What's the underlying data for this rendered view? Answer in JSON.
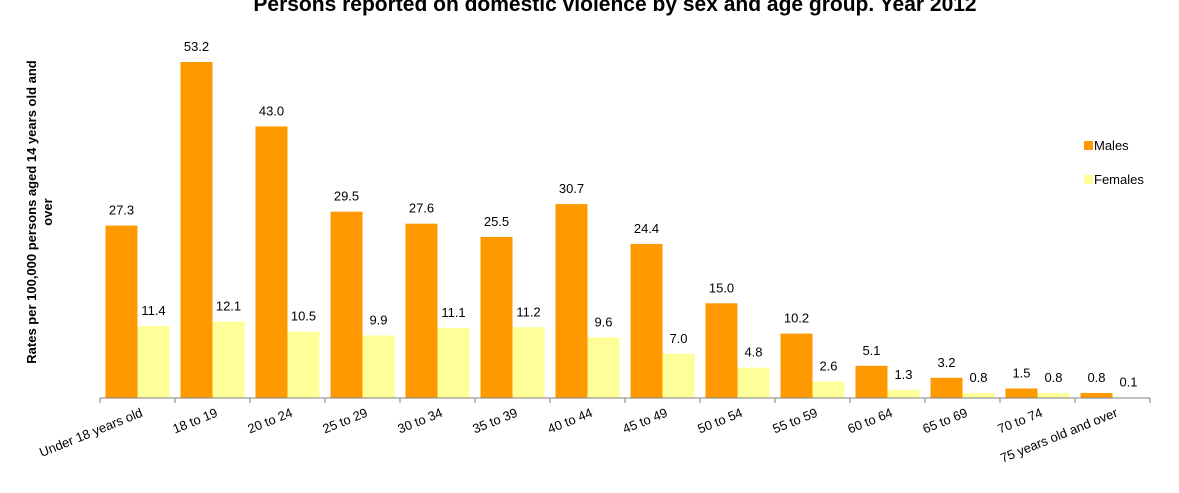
{
  "chart_data": {
    "type": "bar",
    "title": "Persons reported on domestic violence by sex and age group. Year 2012",
    "ylabel_lines": [
      "Rates per 100,000 persons aged 14 years old and",
      "over"
    ],
    "xlabel": "",
    "categories": [
      "Under 18 years old",
      "18 to 19",
      "20 to 24",
      "25 to 29",
      "30 to 34",
      "35 to 39",
      "40 to 44",
      "45 to 49",
      "50 to 54",
      "55 to 59",
      "60 to 64",
      "65 to 69",
      "70 to 74",
      "75 years old and over"
    ],
    "series": [
      {
        "name": "Males",
        "color": "#FF9900",
        "values": [
          27.3,
          53.2,
          43.0,
          29.5,
          27.6,
          25.5,
          30.7,
          24.4,
          15.0,
          10.2,
          5.1,
          3.2,
          1.5,
          0.8
        ],
        "labels": [
          "27.3",
          "53.2",
          "43.0",
          "29.5",
          "27.6",
          "25.5",
          "30.7",
          "24.4",
          "15.0",
          "10.2",
          "5.1",
          "3.2",
          "1.5",
          "0.8"
        ]
      },
      {
        "name": "Females",
        "color": "#FFFF99",
        "values": [
          11.4,
          12.1,
          10.5,
          9.9,
          11.1,
          11.2,
          9.6,
          7.0,
          4.8,
          2.6,
          1.3,
          0.8,
          0.8,
          0.1
        ],
        "labels": [
          "11.4",
          "12.1",
          "10.5",
          "9.9",
          "11.1",
          "11.2",
          "9.6",
          "7.0",
          "4.8",
          "2.6",
          "1.3",
          "0.8",
          "0.8",
          "0.1"
        ]
      }
    ],
    "ylim": [
      0,
      53.2
    ],
    "grid": false,
    "legend_position": "right"
  }
}
